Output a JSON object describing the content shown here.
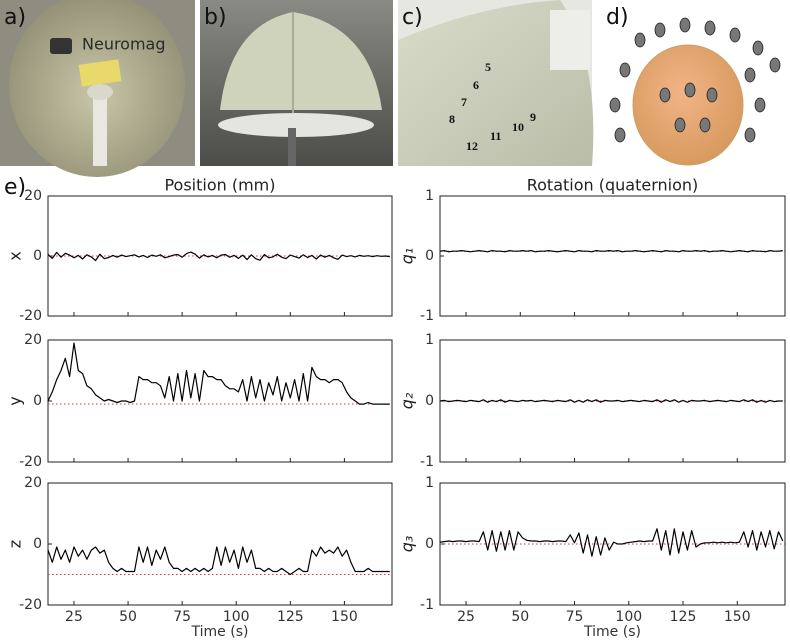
{
  "panel_labels": [
    "a)",
    "b)",
    "c)",
    "d)",
    "e)"
  ],
  "photo_texts": {
    "brand": "Neuromag",
    "coil_numbers": [
      "5",
      "6",
      "7",
      "8",
      "9",
      "10",
      "11",
      "12"
    ]
  },
  "chart_data": [
    {
      "type": "line",
      "title": "Position (mm)",
      "ylabel": "x",
      "color": "#000000",
      "reference_line": {
        "value": 0,
        "color": "#e03030"
      },
      "xlim": [
        13,
        172
      ],
      "xticks": [
        25,
        50,
        75,
        100,
        125,
        150
      ],
      "ylim": [
        -20,
        20
      ],
      "yticks": [
        -20,
        0,
        20
      ],
      "x": [
        13,
        15,
        17,
        19,
        21,
        23,
        25,
        27,
        29,
        31,
        33,
        35,
        37,
        39,
        41,
        43,
        45,
        47,
        49,
        51,
        53,
        55,
        57,
        59,
        61,
        63,
        65,
        67,
        69,
        71,
        73,
        75,
        77,
        79,
        81,
        83,
        85,
        87,
        89,
        91,
        93,
        95,
        97,
        99,
        101,
        103,
        105,
        107,
        109,
        111,
        113,
        115,
        117,
        119,
        121,
        123,
        125,
        127,
        129,
        131,
        133,
        135,
        137,
        139,
        141,
        143,
        145,
        147,
        149,
        151,
        153,
        155,
        157,
        159,
        161,
        163,
        165,
        167,
        169,
        171
      ],
      "values": [
        0.5,
        -0.8,
        1.2,
        -0.4,
        0.9,
        0.3,
        -0.6,
        0.2,
        -1.0,
        0.4,
        -0.3,
        -1.5,
        0.6,
        -0.9,
        -0.5,
        0.2,
        -0.4,
        0.3,
        -0.2,
        0.1,
        0.4,
        -0.3,
        0.2,
        -0.5,
        0.3,
        -0.1,
        0.4,
        -0.6,
        -0.2,
        0.3,
        0.5,
        -0.4,
        0.8,
        1.3,
        0.6,
        -0.7,
        0.4,
        -0.3,
        0.2,
        -0.6,
        0.3,
        0.5,
        -0.4,
        0.2,
        -0.8,
        0.3,
        -1.2,
        0.4,
        -0.9,
        -1.4,
        0.5,
        -0.6,
        -0.3,
        0.6,
        -0.4,
        -0.9,
        0.3,
        -0.2,
        -0.7,
        0.4,
        -0.5,
        0.2,
        -1.0,
        0.3,
        -0.4,
        0.2,
        -0.6,
        -1.1,
        0.3,
        -0.2,
        0.1,
        -0.3,
        0.2,
        -0.1,
        0.1,
        -0.2,
        0.1,
        -0.1,
        0.0,
        -0.2
      ]
    },
    {
      "type": "line",
      "title": "Rotation (quaternion)",
      "ylabel": "q₁",
      "color": "#000000",
      "reference_line": {
        "value": 0.08,
        "color": "#e03030"
      },
      "xlim": [
        13,
        172
      ],
      "xticks": [
        25,
        50,
        75,
        100,
        125,
        150
      ],
      "ylim": [
        -1,
        1
      ],
      "yticks": [
        -1,
        0,
        1
      ],
      "x": [
        13,
        15,
        17,
        19,
        21,
        23,
        25,
        27,
        29,
        31,
        33,
        35,
        37,
        39,
        41,
        43,
        45,
        47,
        49,
        51,
        53,
        55,
        57,
        59,
        61,
        63,
        65,
        67,
        69,
        71,
        73,
        75,
        77,
        79,
        81,
        83,
        85,
        87,
        89,
        91,
        93,
        95,
        97,
        99,
        101,
        103,
        105,
        107,
        109,
        111,
        113,
        115,
        117,
        119,
        121,
        123,
        125,
        127,
        129,
        131,
        133,
        135,
        137,
        139,
        141,
        143,
        145,
        147,
        149,
        151,
        153,
        155,
        157,
        159,
        161,
        163,
        165,
        167,
        169,
        171
      ],
      "values": [
        0.08,
        0.09,
        0.07,
        0.08,
        0.08,
        0.09,
        0.08,
        0.07,
        0.08,
        0.09,
        0.08,
        0.07,
        0.09,
        0.08,
        0.08,
        0.07,
        0.09,
        0.08,
        0.08,
        0.09,
        0.08,
        0.09,
        0.07,
        0.08,
        0.08,
        0.09,
        0.08,
        0.07,
        0.08,
        0.09,
        0.08,
        0.07,
        0.09,
        0.08,
        0.08,
        0.07,
        0.09,
        0.08,
        0.08,
        0.09,
        0.08,
        0.09,
        0.07,
        0.08,
        0.08,
        0.09,
        0.08,
        0.07,
        0.08,
        0.09,
        0.08,
        0.07,
        0.09,
        0.08,
        0.08,
        0.07,
        0.09,
        0.08,
        0.08,
        0.09,
        0.08,
        0.09,
        0.07,
        0.08,
        0.08,
        0.09,
        0.08,
        0.07,
        0.08,
        0.09,
        0.08,
        0.07,
        0.09,
        0.08,
        0.08,
        0.07,
        0.09,
        0.08,
        0.08,
        0.09
      ]
    },
    {
      "type": "line",
      "ylabel": "y",
      "color": "#000000",
      "reference_line": {
        "value": -1,
        "color": "#e03030"
      },
      "xlim": [
        13,
        172
      ],
      "xticks": [
        25,
        50,
        75,
        100,
        125,
        150
      ],
      "ylim": [
        -20,
        20
      ],
      "yticks": [
        -20,
        0,
        20
      ],
      "x": [
        13,
        15,
        17,
        19,
        21,
        23,
        25,
        27,
        29,
        31,
        33,
        35,
        37,
        39,
        41,
        43,
        45,
        47,
        49,
        51,
        53,
        55,
        57,
        59,
        61,
        63,
        65,
        67,
        69,
        71,
        73,
        75,
        77,
        79,
        81,
        83,
        85,
        87,
        89,
        91,
        93,
        95,
        97,
        99,
        101,
        103,
        105,
        107,
        109,
        111,
        113,
        115,
        117,
        119,
        121,
        123,
        125,
        127,
        129,
        131,
        133,
        135,
        137,
        139,
        141,
        143,
        145,
        147,
        149,
        151,
        153,
        155,
        157,
        159,
        161,
        163,
        165,
        167,
        169,
        171
      ],
      "values": [
        0,
        3,
        7,
        10,
        14,
        8,
        19,
        10,
        9,
        5,
        4,
        2,
        1,
        0,
        0.5,
        0,
        -0.5,
        0,
        0,
        -0.5,
        0,
        8,
        7,
        7,
        6,
        6,
        5,
        1,
        8,
        0,
        9,
        0,
        10,
        1,
        9,
        0,
        10,
        8,
        8,
        7,
        7,
        5,
        4,
        4,
        3,
        7,
        0,
        8,
        1,
        7,
        0,
        6,
        2,
        8,
        0,
        6,
        1,
        7,
        0,
        9,
        0,
        11,
        8,
        7,
        7,
        6,
        7,
        7,
        6,
        3,
        1,
        0,
        -1,
        -1,
        -0.5,
        -1,
        -1,
        -1,
        -1,
        -1
      ]
    },
    {
      "type": "line",
      "ylabel": "q₂",
      "color": "#000000",
      "reference_line": {
        "value": 0,
        "color": "#e03030"
      },
      "xlim": [
        13,
        172
      ],
      "xticks": [
        25,
        50,
        75,
        100,
        125,
        150
      ],
      "ylim": [
        -1,
        1
      ],
      "yticks": [
        -1,
        0,
        1
      ],
      "x": [
        13,
        15,
        17,
        19,
        21,
        23,
        25,
        27,
        29,
        31,
        33,
        35,
        37,
        39,
        41,
        43,
        45,
        47,
        49,
        51,
        53,
        55,
        57,
        59,
        61,
        63,
        65,
        67,
        69,
        71,
        73,
        75,
        77,
        79,
        81,
        83,
        85,
        87,
        89,
        91,
        93,
        95,
        97,
        99,
        101,
        103,
        105,
        107,
        109,
        111,
        113,
        115,
        117,
        119,
        121,
        123,
        125,
        127,
        129,
        131,
        133,
        135,
        137,
        139,
        141,
        143,
        145,
        147,
        149,
        151,
        153,
        155,
        157,
        159,
        161,
        163,
        165,
        167,
        169,
        171
      ],
      "values": [
        0.0,
        0.01,
        -0.01,
        0.0,
        0.01,
        0.0,
        -0.01,
        0.01,
        0.0,
        -0.01,
        0.02,
        -0.02,
        0.01,
        -0.01,
        0.02,
        -0.02,
        0.01,
        0.0,
        -0.01,
        0.01,
        0.0,
        0.01,
        -0.01,
        0.0,
        0.01,
        0.0,
        -0.01,
        0.01,
        0.0,
        -0.01,
        0.02,
        -0.02,
        0.01,
        -0.02,
        0.02,
        -0.01,
        0.02,
        -0.02,
        0.01,
        0.0,
        0.0,
        0.01,
        -0.01,
        0.0,
        0.01,
        0.0,
        -0.01,
        0.01,
        0.0,
        -0.01,
        0.02,
        -0.02,
        0.02,
        -0.01,
        0.02,
        -0.02,
        0.01,
        -0.02,
        0.01,
        0.0,
        0.0,
        0.01,
        -0.01,
        0.0,
        0.01,
        0.0,
        -0.01,
        0.01,
        0.0,
        -0.01,
        0.02,
        -0.01,
        0.02,
        -0.02,
        0.01,
        -0.02,
        0.01,
        -0.01,
        0.0,
        0.0
      ]
    },
    {
      "type": "line",
      "ylabel": "z",
      "xlabel": "Time (s)",
      "color": "#000000",
      "reference_line": {
        "value": -10,
        "color": "#e03030"
      },
      "xlim": [
        13,
        172
      ],
      "xticks": [
        25,
        50,
        75,
        100,
        125,
        150
      ],
      "ylim": [
        -20,
        20
      ],
      "yticks": [
        -20,
        0,
        20
      ],
      "x": [
        13,
        15,
        17,
        19,
        21,
        23,
        25,
        27,
        29,
        31,
        33,
        35,
        37,
        39,
        41,
        43,
        45,
        47,
        49,
        51,
        53,
        55,
        57,
        59,
        61,
        63,
        65,
        67,
        69,
        71,
        73,
        75,
        77,
        79,
        81,
        83,
        85,
        87,
        89,
        91,
        93,
        95,
        97,
        99,
        101,
        103,
        105,
        107,
        109,
        111,
        113,
        115,
        117,
        119,
        121,
        123,
        125,
        127,
        129,
        131,
        133,
        135,
        137,
        139,
        141,
        143,
        145,
        147,
        149,
        151,
        153,
        155,
        157,
        159,
        161,
        163,
        165,
        167,
        169,
        171
      ],
      "values": [
        -2,
        -6,
        -1,
        -5,
        -2,
        -6,
        -1,
        -4,
        -2,
        -5,
        -2,
        -1,
        -3,
        -2,
        -6,
        -8,
        -9,
        -8,
        -9,
        -9,
        -9,
        -1,
        -6,
        -1,
        -7,
        -2,
        -5,
        -1,
        -6,
        -8,
        -8,
        -9,
        -8,
        -9,
        -8,
        -9,
        -8,
        -9,
        -8,
        -1,
        -7,
        -1,
        -6,
        -2,
        -8,
        -1,
        -6,
        -2,
        -8,
        -8,
        -9,
        -8,
        -9,
        -9,
        -8,
        -9,
        -10,
        -9,
        -8,
        -9,
        -9,
        -2,
        -4,
        -1,
        -3,
        -2,
        -3,
        -1,
        -4,
        -2,
        -6,
        -9,
        -9,
        -9,
        -8,
        -9,
        -9,
        -9,
        -9,
        -9
      ]
    },
    {
      "type": "line",
      "ylabel": "q₃",
      "xlabel": "Time (s)",
      "color": "#000000",
      "reference_line": {
        "value": 0,
        "color": "#e03030"
      },
      "xlim": [
        13,
        172
      ],
      "xticks": [
        25,
        50,
        75,
        100,
        125,
        150
      ],
      "ylim": [
        -1,
        1
      ],
      "yticks": [
        -1,
        0,
        1
      ],
      "x": [
        13,
        15,
        17,
        19,
        21,
        23,
        25,
        27,
        29,
        31,
        33,
        35,
        37,
        39,
        41,
        43,
        45,
        47,
        49,
        51,
        53,
        55,
        57,
        59,
        61,
        63,
        65,
        67,
        69,
        71,
        73,
        75,
        77,
        79,
        81,
        83,
        85,
        87,
        89,
        91,
        93,
        95,
        97,
        99,
        101,
        103,
        105,
        107,
        109,
        111,
        113,
        115,
        117,
        119,
        121,
        123,
        125,
        127,
        129,
        131,
        133,
        135,
        137,
        139,
        141,
        143,
        145,
        147,
        149,
        151,
        153,
        155,
        157,
        159,
        161,
        163,
        165,
        167,
        169,
        171
      ],
      "values": [
        0.03,
        0.04,
        0.05,
        0.04,
        0.05,
        0.05,
        0.04,
        0.05,
        0.05,
        0.04,
        0.2,
        -0.1,
        0.22,
        -0.12,
        0.2,
        -0.1,
        0.22,
        -0.1,
        0.2,
        0.1,
        0.06,
        0.05,
        0.05,
        0.04,
        0.05,
        0.05,
        0.04,
        0.05,
        0.05,
        0.04,
        0.15,
        0.02,
        0.18,
        -0.15,
        0.15,
        -0.2,
        0.12,
        -0.18,
        0.1,
        -0.1,
        0.03,
        0.0,
        0.0,
        0.02,
        0.03,
        0.04,
        0.05,
        0.04,
        0.05,
        0.05,
        0.25,
        -0.1,
        0.22,
        -0.18,
        0.25,
        -0.15,
        0.2,
        -0.1,
        0.22,
        -0.05,
        0.0,
        0.02,
        0.02,
        0.03,
        0.02,
        0.03,
        0.02,
        0.03,
        0.02,
        0.03,
        0.2,
        -0.05,
        0.22,
        -0.1,
        0.2,
        -0.05,
        0.22,
        -0.08,
        0.2,
        0.05
      ]
    }
  ]
}
